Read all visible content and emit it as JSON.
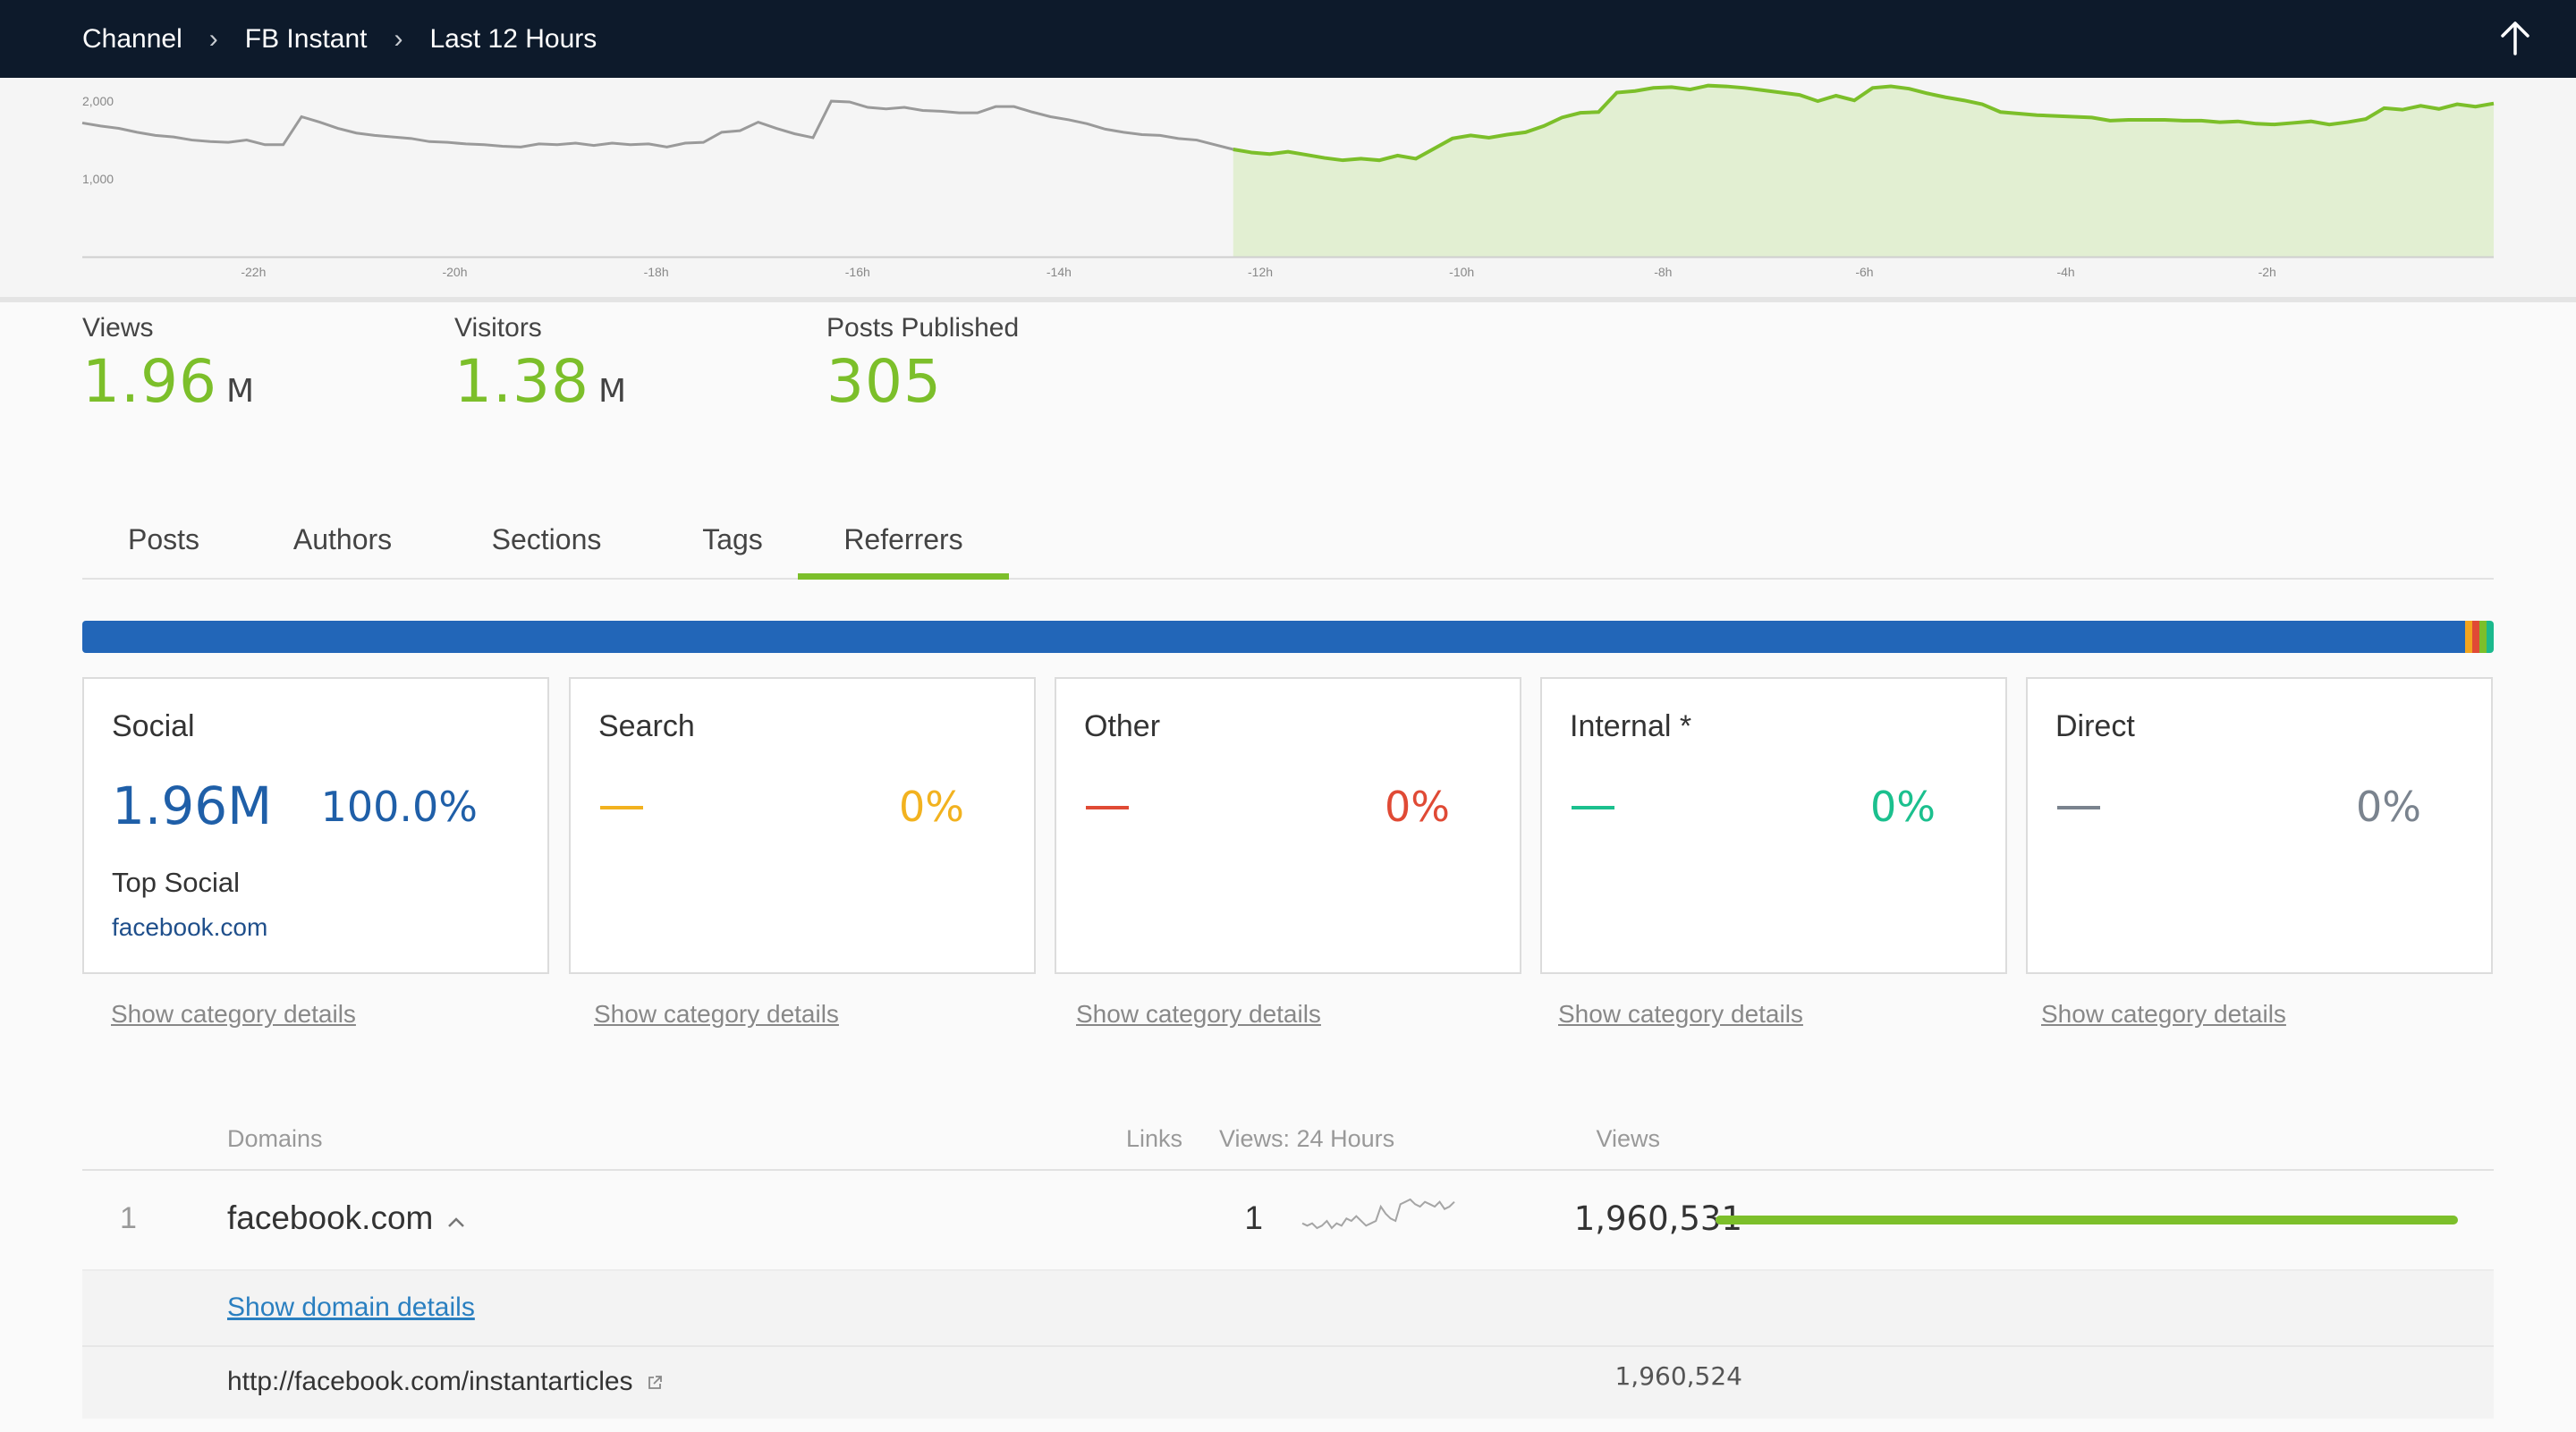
{
  "breadcrumb": [
    "Channel",
    "FB Instant",
    "Last 12 Hours"
  ],
  "overview_chart": {
    "type": "area",
    "y_ticks": [
      "2,000",
      "1,000"
    ],
    "x_ticks": [
      "-22h",
      "-20h",
      "-18h",
      "-16h",
      "-14h",
      "-12h",
      "-10h",
      "-8h",
      "-6h",
      "-4h",
      "-2h"
    ],
    "ylim": [
      0,
      2300
    ],
    "highlight_start": "-12h",
    "earlier_color": "#9a9a9a",
    "recent_color": "#7cbf2a",
    "recent_fill": "#e2efd2",
    "values": [
      1720,
      1680,
      1650,
      1600,
      1560,
      1540,
      1500,
      1480,
      1470,
      1500,
      1440,
      1440,
      1800,
      1730,
      1650,
      1590,
      1560,
      1540,
      1520,
      1480,
      1470,
      1450,
      1440,
      1420,
      1410,
      1450,
      1440,
      1460,
      1430,
      1460,
      1440,
      1450,
      1410,
      1460,
      1470,
      1600,
      1620,
      1730,
      1650,
      1580,
      1530,
      2000,
      1990,
      1920,
      1900,
      1920,
      1880,
      1870,
      1850,
      1850,
      1930,
      1930,
      1860,
      1800,
      1760,
      1710,
      1640,
      1600,
      1570,
      1560,
      1520,
      1500,
      1440,
      1380,
      1340,
      1320,
      1350,
      1310,
      1270,
      1240,
      1260,
      1240,
      1300,
      1260,
      1390,
      1520,
      1560,
      1530,
      1570,
      1600,
      1680,
      1790,
      1850,
      1860,
      2110,
      2130,
      2170,
      2180,
      2150,
      2200,
      2190,
      2170,
      2140,
      2110,
      2080,
      2000,
      2070,
      2010,
      2170,
      2190,
      2160,
      2100,
      2050,
      2010,
      1960,
      1860,
      1840,
      1820,
      1810,
      1800,
      1790,
      1750,
      1760,
      1760,
      1760,
      1750,
      1750,
      1730,
      1740,
      1710,
      1700,
      1720,
      1740,
      1700,
      1730,
      1770,
      1910,
      1890,
      1940,
      1900,
      1960,
      1930,
      1970
    ]
  },
  "metrics": [
    {
      "label": "Views",
      "value": "1.96",
      "unit": "M"
    },
    {
      "label": "Visitors",
      "value": "1.38",
      "unit": "M"
    },
    {
      "label": "Posts Published",
      "value": "305",
      "unit": ""
    }
  ],
  "tabs": [
    "Posts",
    "Authors",
    "Sections",
    "Tags",
    "Referrers"
  ],
  "active_tab": "Referrers",
  "stack_bar": [
    {
      "color": "#2266b8",
      "share": 0.988
    },
    {
      "color": "#f2a51f",
      "share": 0.003
    },
    {
      "color": "#e04a35",
      "share": 0.003
    },
    {
      "color": "#7cbf2a",
      "share": 0.003
    },
    {
      "color": "#1bb98d",
      "share": 0.003
    }
  ],
  "categories": [
    {
      "title": "Social",
      "value": "1.96M",
      "pct": "100.0%",
      "color": "#1f5fa8",
      "sub_label": "Top Social",
      "sub_link": "facebook.com",
      "details": "Show category details"
    },
    {
      "title": "Search",
      "value": "",
      "pct": "0%",
      "color": "#f2b21f",
      "sub_label": "",
      "sub_link": "",
      "details": "Show category details"
    },
    {
      "title": "Other",
      "value": "",
      "pct": "0%",
      "color": "#e04a35",
      "sub_label": "",
      "sub_link": "",
      "details": "Show category details"
    },
    {
      "title": "Internal *",
      "value": "",
      "pct": "0%",
      "color": "#1bc08e",
      "sub_label": "",
      "sub_link": "",
      "details": "Show category details"
    },
    {
      "title": "Direct",
      "value": "",
      "pct": "0%",
      "color": "#7a838e",
      "sub_label": "",
      "sub_link": "",
      "details": "Show category details"
    }
  ],
  "table": {
    "headers": {
      "domains": "Domains",
      "links": "Links",
      "views24": "Views: 24 Hours",
      "views": "Views"
    },
    "rows": [
      {
        "rank": "1",
        "domain": "facebook.com",
        "links": "1",
        "views": "1,960,531",
        "share": 1.0,
        "spark": [
          9,
          8,
          9,
          7,
          8,
          10,
          7,
          9,
          8,
          11,
          10,
          12,
          10,
          8,
          9,
          10,
          16,
          13,
          11,
          10,
          17,
          18,
          19,
          17,
          16,
          18,
          17,
          16,
          18,
          15,
          16,
          18
        ]
      }
    ],
    "domain_details_link": "Show domain details",
    "sub_rows": [
      {
        "url": "http://facebook.com/instantarticles",
        "views": "1,960,524"
      }
    ]
  }
}
